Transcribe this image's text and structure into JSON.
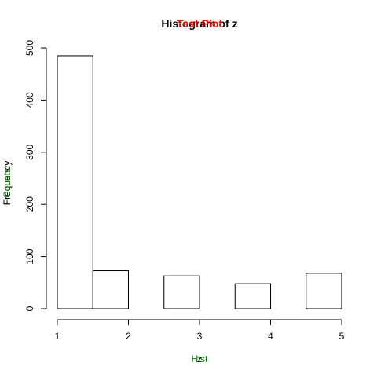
{
  "chart_data": {
    "type": "bar",
    "title": "Histogram of z",
    "overlay_title": "Test Plot",
    "xlabel": "z",
    "xlabel_overlay": "Hist",
    "ylabel": "Frequency",
    "ylabel_overlay": "Counts",
    "bins": [
      {
        "start": 1.0,
        "end": 1.5,
        "count": 485
      },
      {
        "start": 1.5,
        "end": 2.0,
        "count": 73
      },
      {
        "start": 2.0,
        "end": 2.5,
        "count": 0
      },
      {
        "start": 2.5,
        "end": 3.0,
        "count": 63
      },
      {
        "start": 3.0,
        "end": 3.5,
        "count": 0
      },
      {
        "start": 3.5,
        "end": 4.0,
        "count": 48
      },
      {
        "start": 4.0,
        "end": 4.5,
        "count": 0
      },
      {
        "start": 4.5,
        "end": 5.0,
        "count": 68
      }
    ],
    "xlim": [
      1,
      5
    ],
    "ylim": [
      0,
      500
    ],
    "x_ticks": [
      "1",
      "2",
      "3",
      "4",
      "5"
    ],
    "y_ticks": [
      "0",
      "100",
      "200",
      "300",
      "400",
      "500"
    ],
    "grid": false,
    "colors": {
      "bar_fill": "#ffffff",
      "bar_stroke": "#000000",
      "title": "#000000",
      "overlay_title": "#ff0000",
      "axis_label": "#000000",
      "overlay_label": "#008000"
    }
  }
}
